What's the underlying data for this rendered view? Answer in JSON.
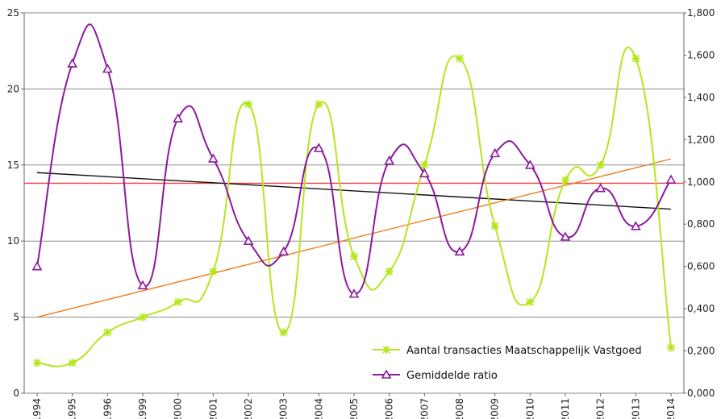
{
  "chart_data": {
    "type": "line",
    "categories": [
      "1994",
      "1995",
      "1996",
      "1999",
      "2000",
      "2001",
      "2002",
      "2003",
      "2004",
      "2005",
      "2006",
      "2007",
      "2008",
      "2009",
      "2010",
      "2011",
      "2012",
      "2013",
      "2014"
    ],
    "y_left": {
      "ylim": [
        0,
        25
      ],
      "ticks": [
        "0",
        "5",
        "10",
        "15",
        "20",
        "25"
      ]
    },
    "y_right": {
      "ylim": [
        0,
        1.8
      ],
      "ticks": [
        "0,000",
        "0,200",
        "0,400",
        "0,600",
        "0,800",
        "1,000",
        "1,200",
        "1,400",
        "1,600",
        "1,800"
      ]
    },
    "series": [
      {
        "name": "Aantal transacties Maatschappelijk Vastgoed",
        "axis": "left",
        "color": "#b5e61d",
        "marker": "asterisk",
        "values": [
          2,
          2,
          4,
          5,
          6,
          8,
          19,
          4,
          19,
          9,
          8,
          15,
          22,
          11,
          6,
          14,
          15,
          22,
          3
        ]
      },
      {
        "name": "Gemiddelde ratio",
        "axis": "right",
        "color": "#8b1a9b",
        "marker": "triangle",
        "values": [
          0.6,
          1.56,
          1.535,
          0.51,
          1.3,
          1.11,
          0.72,
          0.67,
          1.16,
          0.47,
          1.1,
          1.04,
          0.67,
          1.135,
          1.08,
          0.74,
          0.97,
          0.79,
          1.01
        ]
      }
    ],
    "reference_lines": [
      {
        "color": "#ff3b3b",
        "axis": "left",
        "y_start": 13.8,
        "y_end": 13.8
      },
      {
        "color": "#111111",
        "axis": "left",
        "y_start": 14.5,
        "y_end": 12.1
      },
      {
        "color": "#f07c1c",
        "axis": "left",
        "y_start": 5.0,
        "y_end": 15.4
      }
    ],
    "grid": true,
    "legend_position": "bottom-right"
  }
}
